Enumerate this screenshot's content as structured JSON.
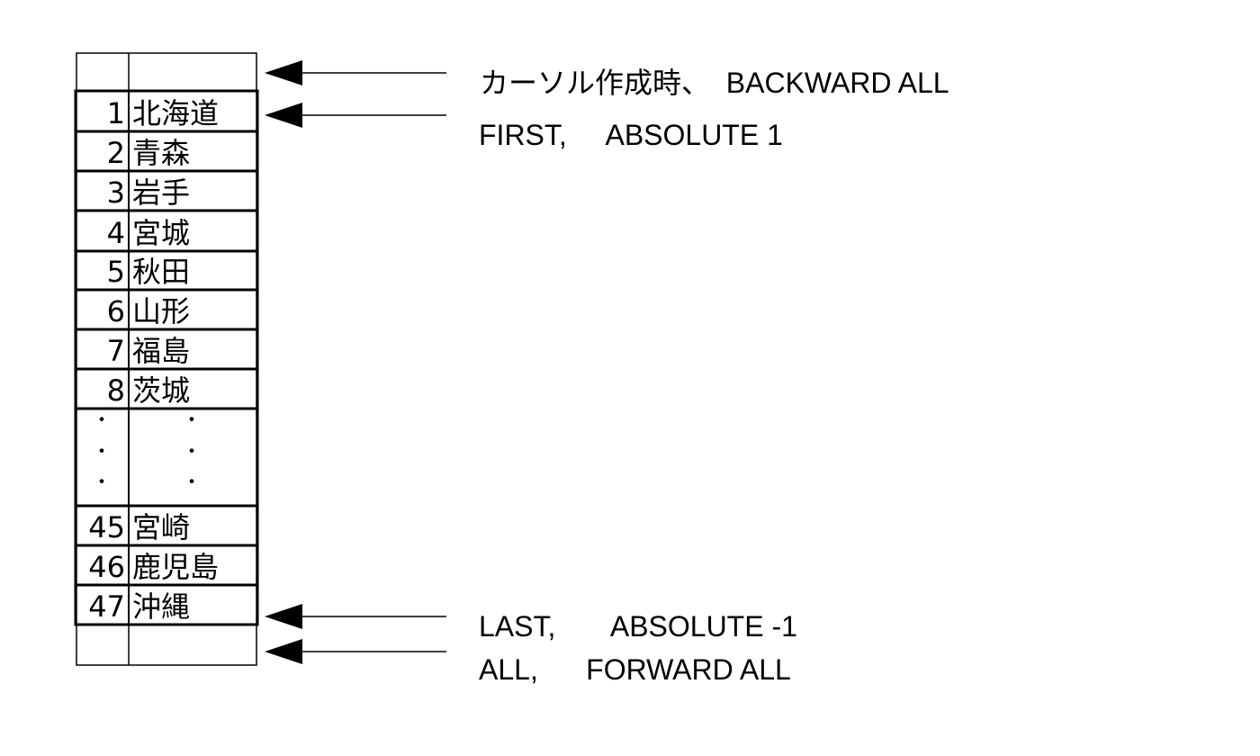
{
  "rows": [
    {
      "num": "1",
      "name": "北海道"
    },
    {
      "num": "2",
      "name": "青森"
    },
    {
      "num": "3",
      "name": "岩手"
    },
    {
      "num": "4",
      "name": "宮城"
    },
    {
      "num": "5",
      "name": "秋田"
    },
    {
      "num": "6",
      "name": "山形"
    },
    {
      "num": "7",
      "name": "福島"
    },
    {
      "num": "8",
      "name": "茨城"
    },
    {
      "num": "45",
      "name": "宮崎"
    },
    {
      "num": "46",
      "name": "鹿児島"
    },
    {
      "num": "47",
      "name": "沖縄"
    }
  ],
  "ellipsis_glyph": "・",
  "pointers": [
    {
      "id": "before-first",
      "label": "カーソル作成時、  BACKWARD ALL"
    },
    {
      "id": "first-row",
      "label": "FIRST,     ABSOLUTE 1"
    },
    {
      "id": "last-row",
      "label": "LAST,       ABSOLUTE -1"
    },
    {
      "id": "after-last",
      "label": "ALL,      FORWARD ALL"
    }
  ]
}
